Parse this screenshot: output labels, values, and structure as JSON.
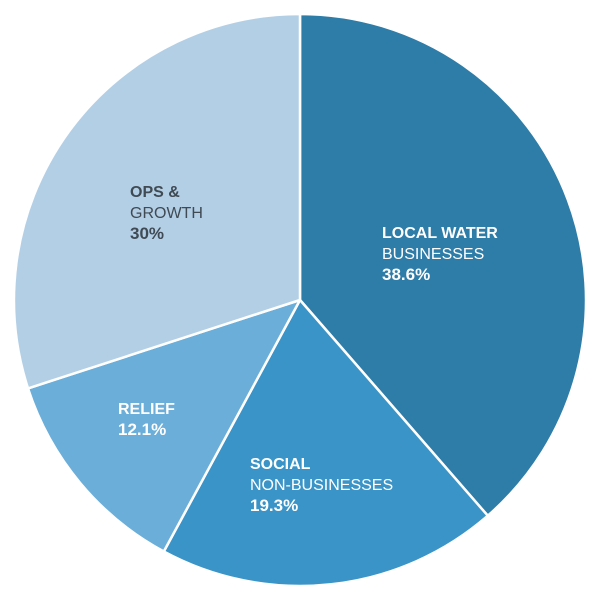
{
  "chart_data": {
    "type": "pie",
    "title": "",
    "slices": [
      {
        "label_bold": "LOCAL WATER",
        "label_light": "BUSINESSES",
        "value": 38.6,
        "value_label": "38.6%",
        "color": "#2e7ca8",
        "text_color": "#ffffff"
      },
      {
        "label_bold": "SOCIAL",
        "label_light": "NON-BUSINESSES",
        "value": 19.3,
        "value_label": "19.3%",
        "color": "#3a94c7",
        "text_color": "#ffffff"
      },
      {
        "label_bold": "RELIEF",
        "label_light": "",
        "value": 12.1,
        "value_label": "12.1%",
        "color": "#6aaed9",
        "text_color": "#ffffff"
      },
      {
        "label_bold": "OPS &",
        "label_light": "GROWTH",
        "value": 30,
        "value_label": "30%",
        "color": "#b3cfe6",
        "text_color": "#404a52"
      }
    ],
    "start_angle_deg": 0,
    "direction": "clockwise"
  }
}
